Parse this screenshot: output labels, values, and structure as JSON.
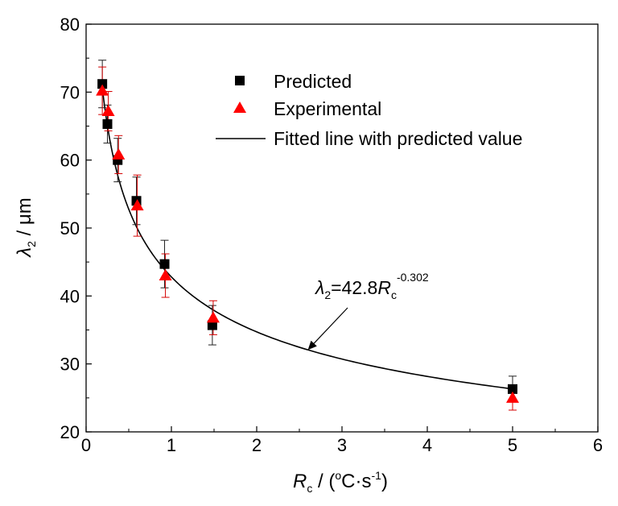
{
  "chart_data": {
    "type": "scatter",
    "xlabel": {
      "symbol": "R",
      "sub": "c",
      "unit_open": " / (",
      "deg": "o",
      "unit_mid": "C·s",
      "exp": "-1",
      "unit_close": ")"
    },
    "ylabel": {
      "symbol": "λ",
      "sub": "2",
      "unit": " / μm"
    },
    "xlim": [
      0,
      6
    ],
    "ylim": [
      20,
      80
    ],
    "xticks": [
      0,
      1,
      2,
      3,
      4,
      5,
      6
    ],
    "yticks": [
      20,
      30,
      40,
      50,
      60,
      70,
      80
    ],
    "series": [
      {
        "name": "Predicted",
        "marker": "square",
        "color": "#000000",
        "points": [
          {
            "x": 0.19,
            "y": 71.2,
            "err": 3.5
          },
          {
            "x": 0.25,
            "y": 65.3,
            "err": 2.8
          },
          {
            "x": 0.37,
            "y": 60.0,
            "err": 3.2
          },
          {
            "x": 0.59,
            "y": 54.0,
            "err": 3.5
          },
          {
            "x": 0.92,
            "y": 44.7,
            "err": 3.5
          },
          {
            "x": 1.48,
            "y": 35.7,
            "err": 2.9
          },
          {
            "x": 5.0,
            "y": 26.3,
            "err": 1.9
          }
        ]
      },
      {
        "name": "Experimental",
        "marker": "triangle",
        "color": "#ff0000",
        "points": [
          {
            "x": 0.19,
            "y": 70.2,
            "err": 3.5
          },
          {
            "x": 0.26,
            "y": 67.2,
            "err": 2.9
          },
          {
            "x": 0.38,
            "y": 60.8,
            "err": 2.8
          },
          {
            "x": 0.6,
            "y": 53.3,
            "err": 4.5
          },
          {
            "x": 0.93,
            "y": 43.0,
            "err": 3.2
          },
          {
            "x": 1.49,
            "y": 36.8,
            "err": 2.5
          },
          {
            "x": 5.0,
            "y": 25.0,
            "err": 1.8
          }
        ]
      },
      {
        "name": "Fitted line with predicted value",
        "type": "line",
        "color": "#000000",
        "a": 42.8,
        "b": -0.302,
        "x_range": [
          0.18,
          5.0
        ]
      }
    ],
    "legend": {
      "position": "top-center",
      "entries": [
        "Predicted",
        "Experimental",
        "Fitted line with predicted value"
      ]
    },
    "annotation": {
      "lhs_symbol": "λ",
      "lhs_sub": "2",
      "eq_text": "=42.8",
      "rhs_symbol": "R",
      "rhs_sub": "c",
      "rhs_exp": "-0.302",
      "arrow_to_x": 2.6
    }
  }
}
